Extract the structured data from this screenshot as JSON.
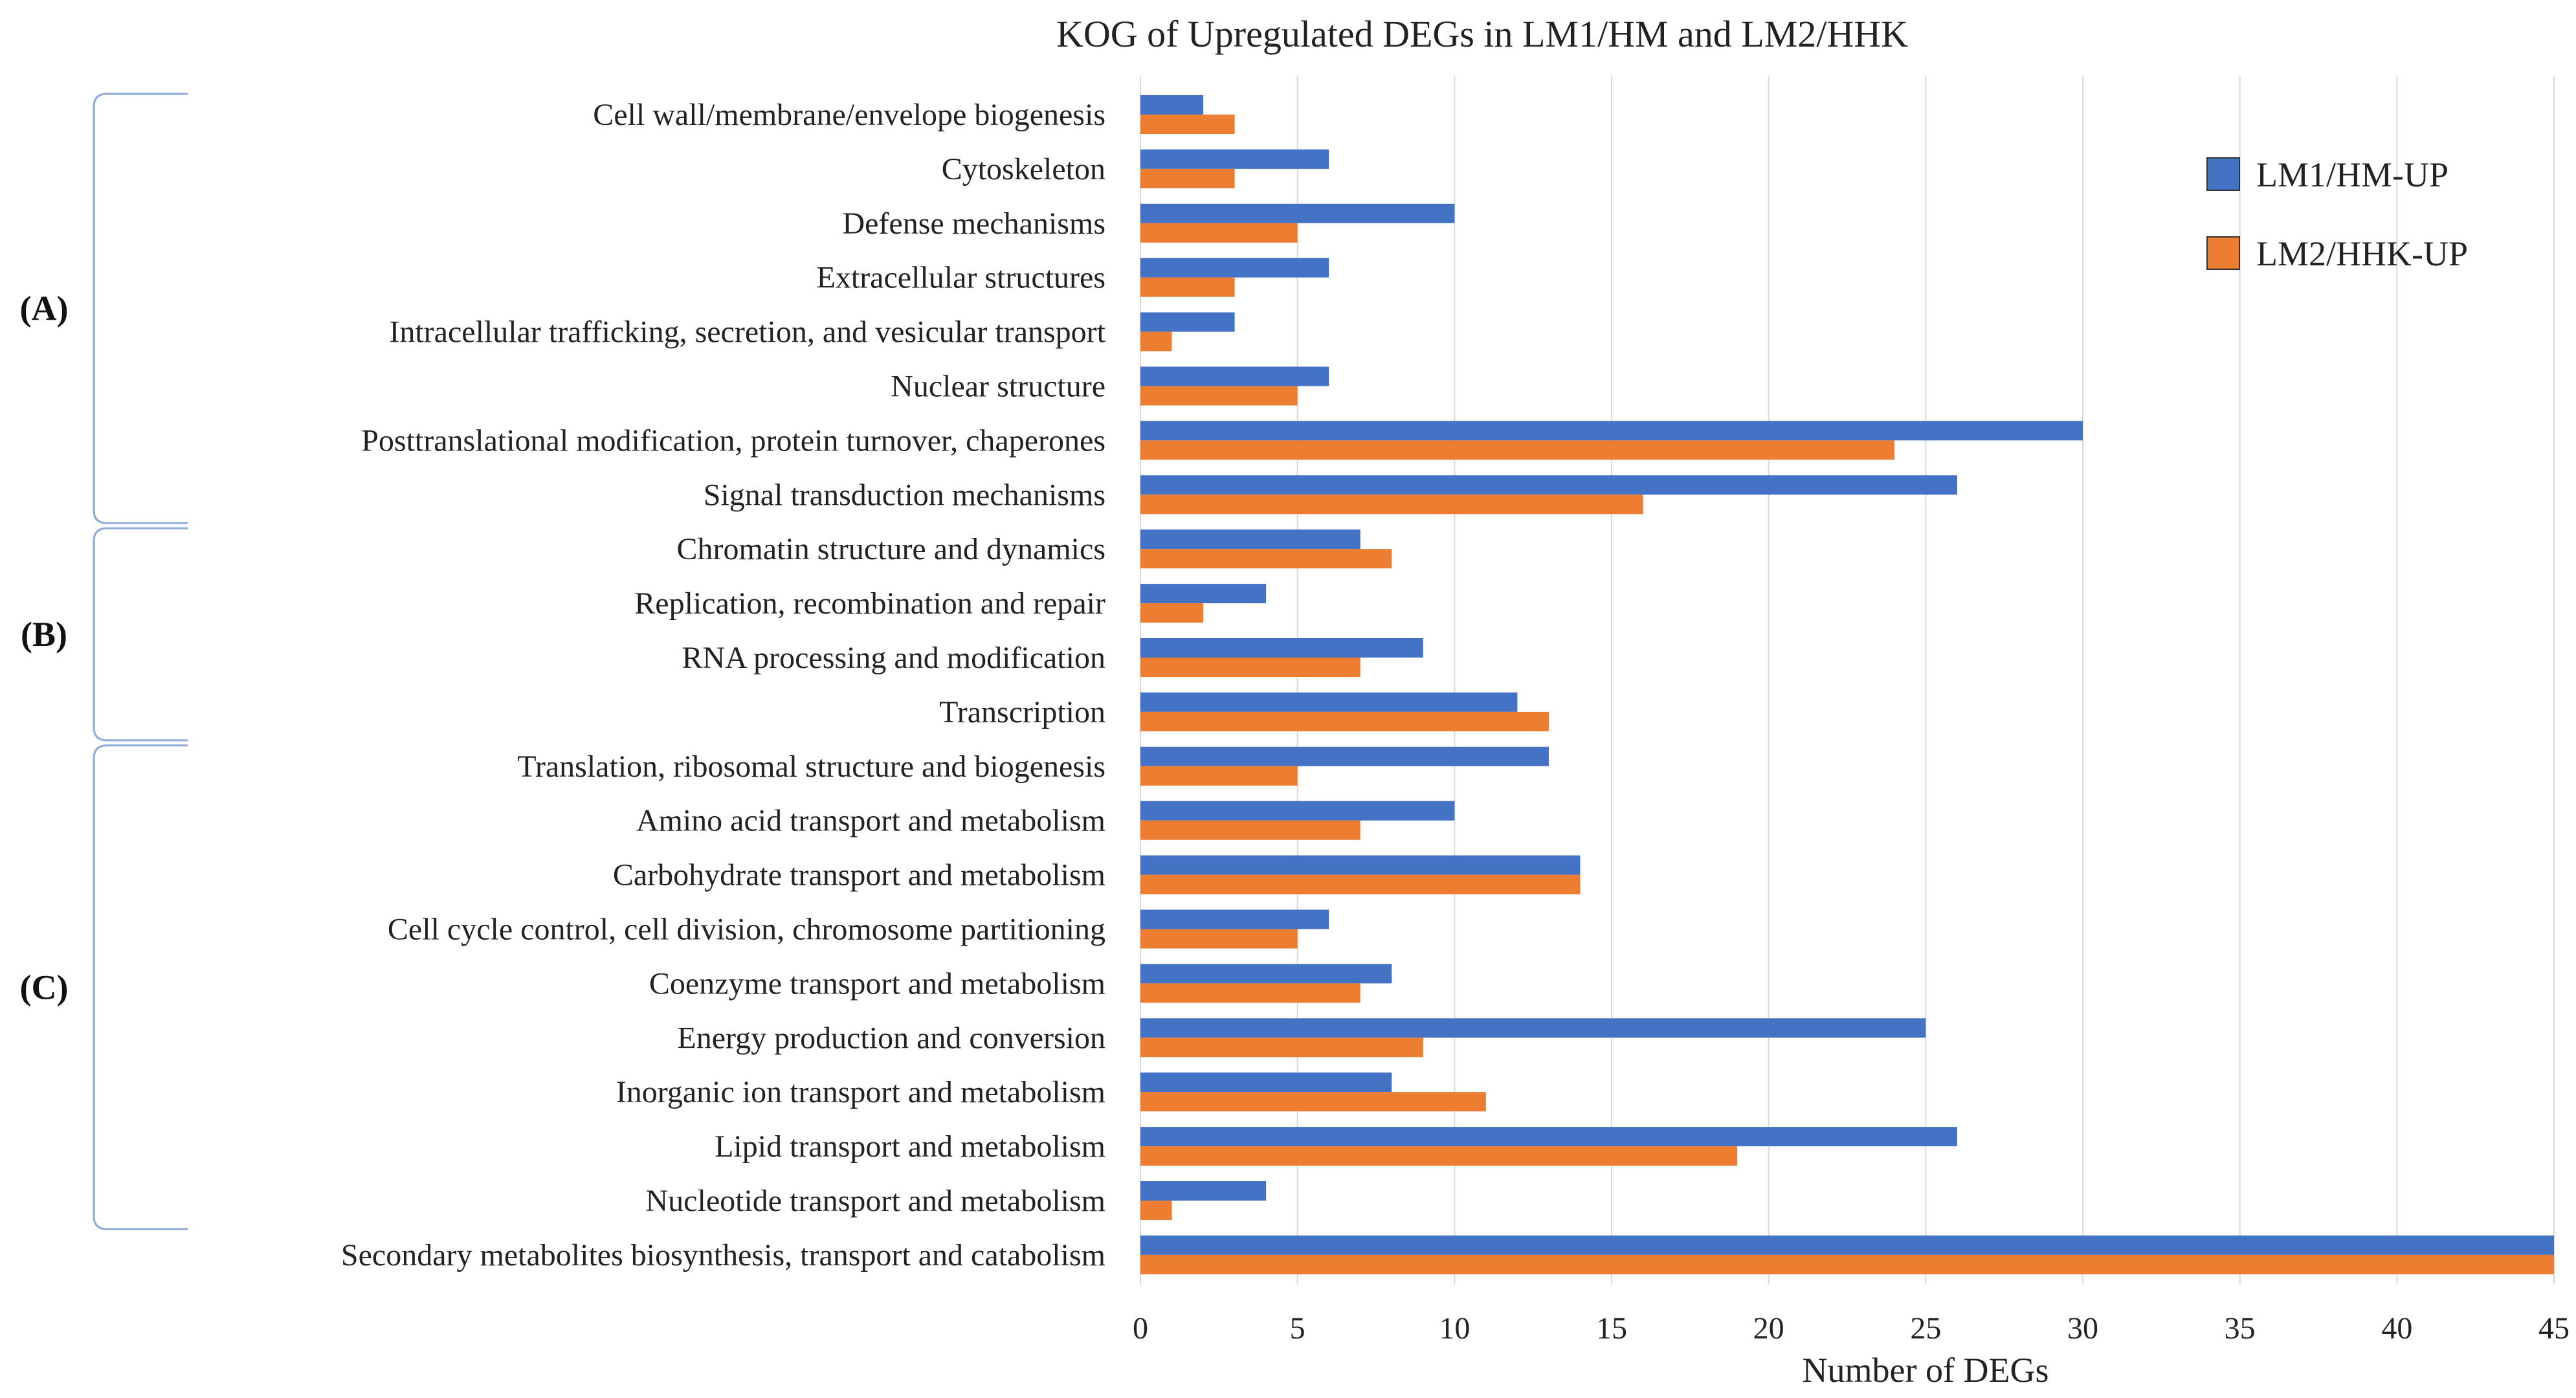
{
  "chart_data": {
    "type": "bar",
    "orientation": "horizontal",
    "title": "KOG of Upregulated DEGs in LM1/HM and LM2/HHK",
    "xlabel": "Number of DEGs",
    "ylabel": "",
    "xlim": [
      0,
      45
    ],
    "x_ticks": [
      0,
      5,
      10,
      15,
      20,
      25,
      30,
      35,
      40,
      45
    ],
    "grid": true,
    "legend_position": "top-right",
    "categories": [
      "Cell wall/membrane/envelope biogenesis",
      "Cytoskeleton",
      "Defense mechanisms",
      "Extracellular structures",
      "Intracellular trafficking, secretion, and vesicular transport",
      "Nuclear structure",
      "Posttranslational modification, protein turnover, chaperones",
      "Signal transduction mechanisms",
      "Chromatin structure and dynamics",
      "Replication, recombination and repair",
      "RNA processing and modification",
      "Transcription",
      "Translation, ribosomal structure and biogenesis",
      "Amino acid transport and metabolism",
      "Carbohydrate transport and metabolism",
      "Cell cycle control, cell division, chromosome partitioning",
      "Coenzyme transport and metabolism",
      "Energy production and conversion",
      "Inorganic ion transport and metabolism",
      "Lipid transport and metabolism",
      "Nucleotide transport and metabolism",
      "Secondary metabolites biosynthesis, transport and catabolism"
    ],
    "series": [
      {
        "name": "LM1/HM-UP",
        "color": "#4472C4",
        "values": [
          2,
          6,
          10,
          6,
          3,
          6,
          30,
          26,
          7,
          4,
          9,
          12,
          13,
          10,
          14,
          6,
          8,
          25,
          8,
          26,
          4,
          45
        ]
      },
      {
        "name": "LM2/HHK-UP",
        "color": "#ED7D31",
        "values": [
          3,
          3,
          5,
          3,
          1,
          5,
          24,
          16,
          8,
          2,
          7,
          13,
          5,
          7,
          14,
          5,
          7,
          9,
          11,
          19,
          1,
          45
        ]
      }
    ],
    "groups": [
      {
        "label": "(A)",
        "first_index": 0,
        "last_index": 7
      },
      {
        "label": "(B)",
        "first_index": 8,
        "last_index": 11
      },
      {
        "label": "(C)",
        "first_index": 12,
        "last_index": 20
      }
    ]
  },
  "colors": {
    "grid": "#D9D9D9",
    "bracket": "#8FAADC",
    "text": "#222222"
  }
}
